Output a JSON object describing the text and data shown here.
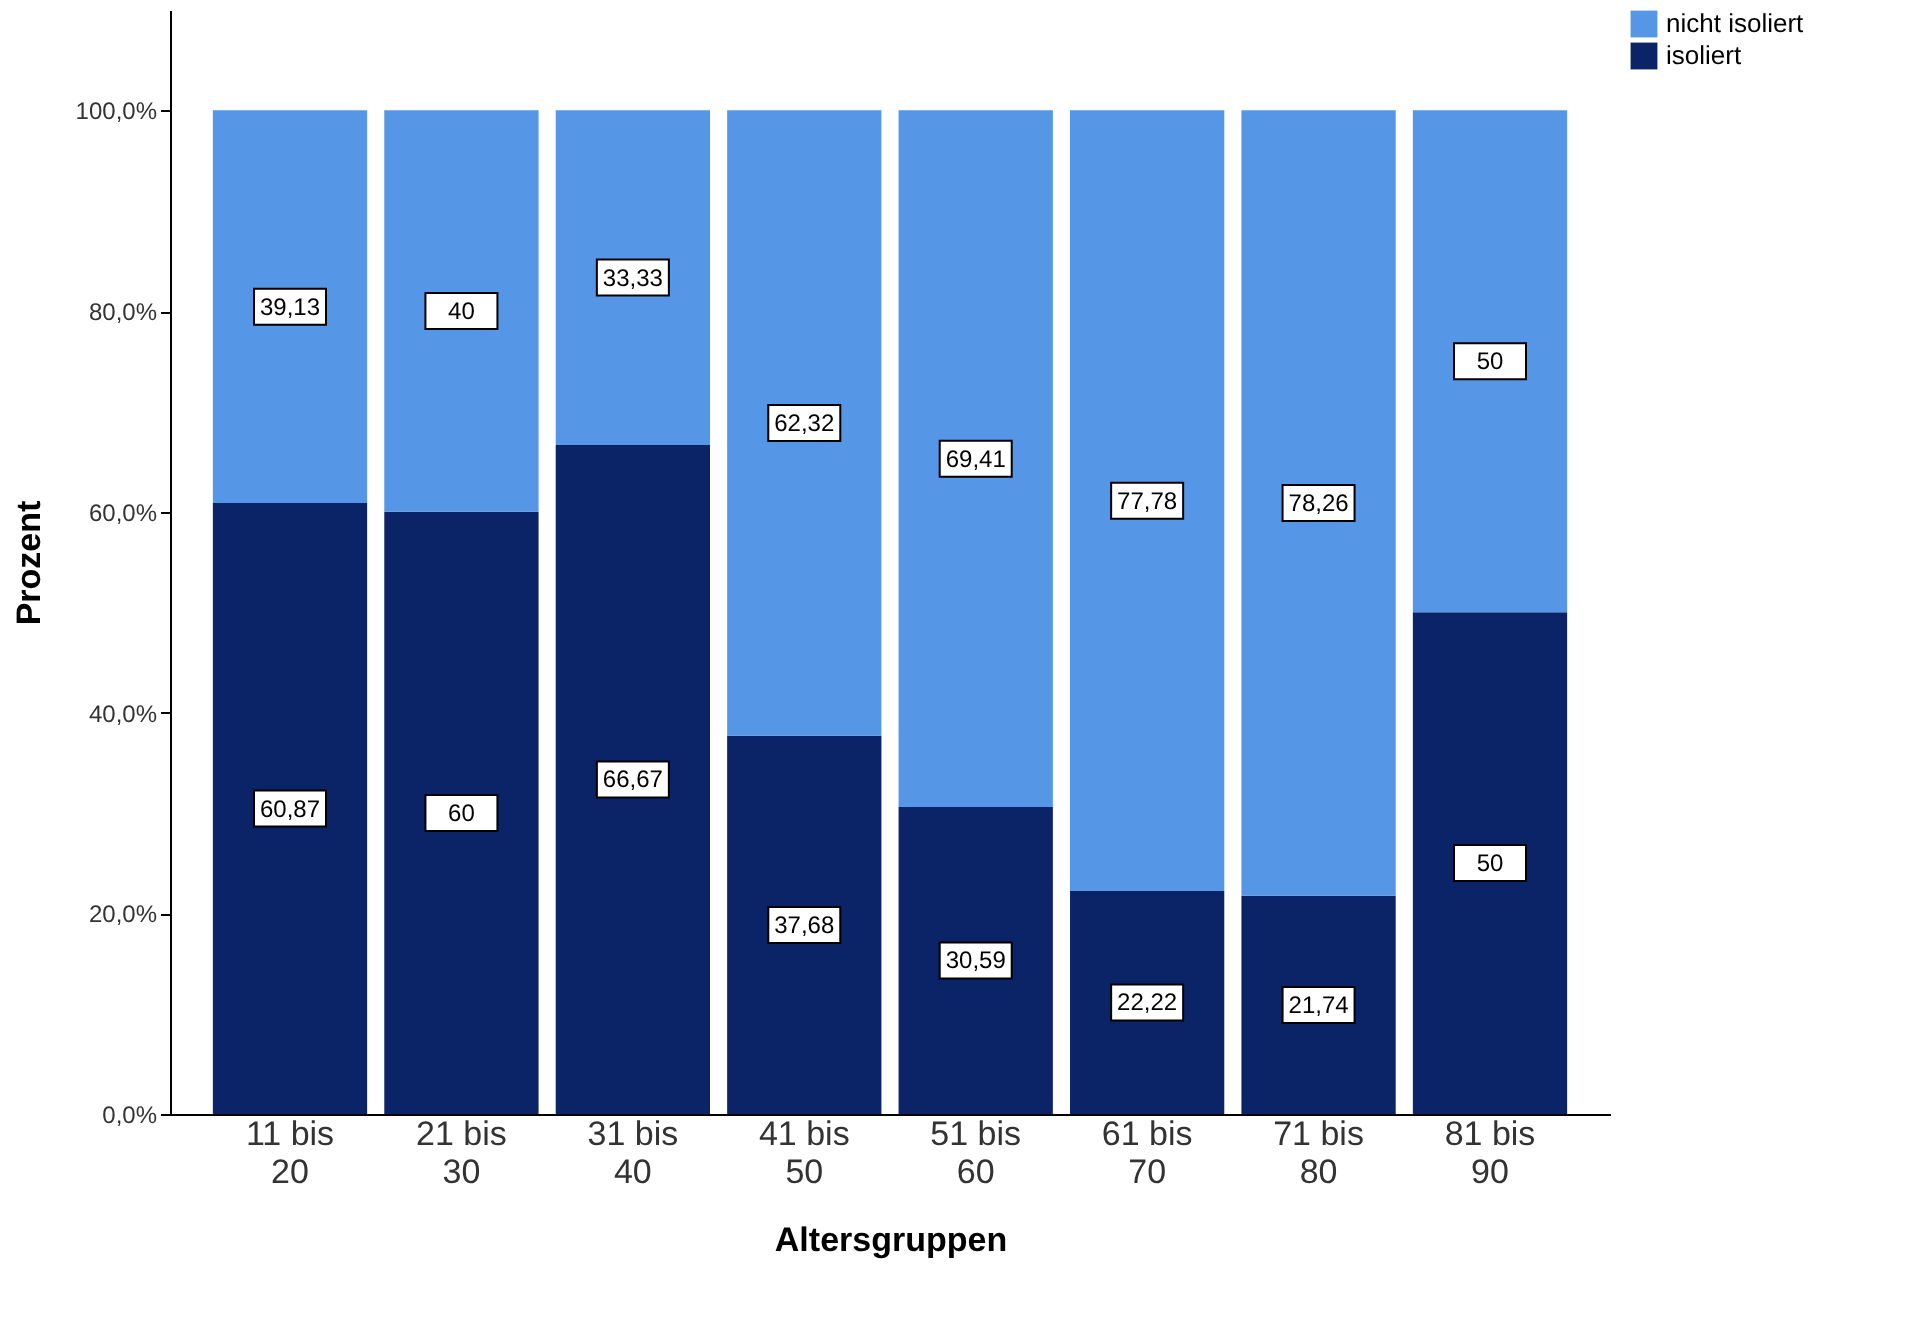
{
  "chart_data": {
    "type": "bar",
    "stacked": true,
    "xlabel": "Altersgruppen",
    "ylabel": "Prozent",
    "categories": [
      "11 bis 20",
      "21 bis 30",
      "31 bis 40",
      "41 bis 50",
      "51 bis 60",
      "61 bis 70",
      "71 bis 80",
      "81 bis 90"
    ],
    "series": [
      {
        "name": "isoliert",
        "color": "#0b2468",
        "values": [
          60.87,
          60,
          66.67,
          37.68,
          30.59,
          22.22,
          21.74,
          50
        ],
        "value_labels": [
          "60,87",
          "60",
          "66,67",
          "37,68",
          "30,59",
          "22,22",
          "21,74",
          "50"
        ]
      },
      {
        "name": "nicht isoliert",
        "color": "#5596e6",
        "values": [
          39.13,
          40,
          33.33,
          62.32,
          69.41,
          77.78,
          78.26,
          50
        ],
        "value_labels": [
          "39,13",
          "40",
          "33,33",
          "62,32",
          "69,41",
          "77,78",
          "78,26",
          "50"
        ]
      }
    ],
    "ylim": [
      0,
      110
    ],
    "yticks": [
      {
        "value": 0,
        "label": "0,0%"
      },
      {
        "value": 20,
        "label": "20,0%"
      },
      {
        "value": 40,
        "label": "40,0%"
      },
      {
        "value": 60,
        "label": "60,0%"
      },
      {
        "value": 80,
        "label": "80,0%"
      },
      {
        "value": 100,
        "label": "100,0%"
      }
    ],
    "grid": false,
    "legend": "top right"
  }
}
